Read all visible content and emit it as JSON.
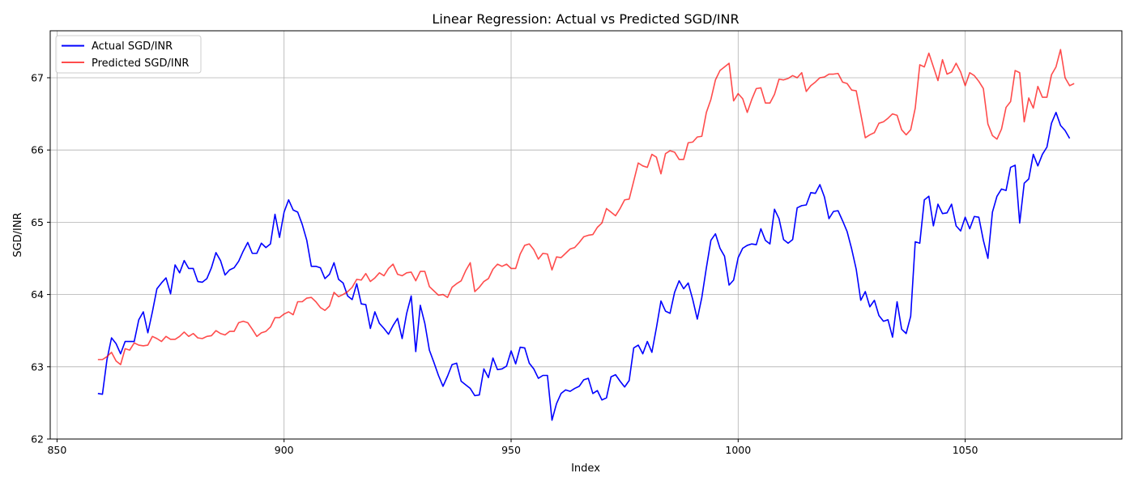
{
  "chart_data": {
    "type": "line",
    "title": "Linear Regression: Actual vs Predicted SGD/INR",
    "xlabel": "Index",
    "ylabel": "SGD/INR",
    "xlim": [
      848.5,
      1084.5
    ],
    "ylim": [
      62,
      67.65
    ],
    "xticks": [
      850,
      900,
      950,
      1000,
      1050
    ],
    "yticks": [
      62,
      63,
      64,
      65,
      66,
      67
    ],
    "grid": true,
    "legend_position": "top-left",
    "x_start": 859,
    "series": [
      {
        "name": "Actual SGD/INR",
        "color": "#0000ff",
        "values": [
          62.63,
          62.62,
          63.1,
          63.4,
          63.32,
          63.18,
          63.35,
          63.35,
          63.35,
          63.65,
          63.76,
          63.47,
          63.76,
          64.08,
          64.16,
          64.23,
          64.01,
          64.41,
          64.3,
          64.47,
          64.36,
          64.36,
          64.18,
          64.17,
          64.22,
          64.37,
          64.58,
          64.47,
          64.27,
          64.34,
          64.37,
          64.46,
          64.6,
          64.72,
          64.57,
          64.57,
          64.71,
          64.65,
          64.7,
          65.11,
          64.79,
          65.14,
          65.31,
          65.17,
          65.14,
          64.97,
          64.75,
          64.39,
          64.39,
          64.37,
          64.22,
          64.28,
          64.44,
          64.21,
          64.16,
          63.98,
          63.93,
          64.15,
          63.87,
          63.86,
          63.53,
          63.76,
          63.6,
          63.53,
          63.45,
          63.57,
          63.67,
          63.39,
          63.74,
          63.98,
          63.21,
          63.85,
          63.6,
          63.23,
          63.06,
          62.88,
          62.73,
          62.87,
          63.03,
          63.05,
          62.8,
          62.75,
          62.7,
          62.6,
          62.61,
          62.97,
          62.85,
          63.12,
          62.96,
          62.97,
          63.01,
          63.22,
          63.04,
          63.27,
          63.26,
          63.05,
          62.97,
          62.84,
          62.88,
          62.88,
          62.26,
          62.49,
          62.63,
          62.68,
          62.66,
          62.7,
          62.73,
          62.82,
          62.84,
          62.63,
          62.67,
          62.54,
          62.57,
          62.86,
          62.89,
          62.8,
          62.72,
          62.81,
          63.26,
          63.3,
          63.18,
          63.35,
          63.2,
          63.54,
          63.91,
          63.77,
          63.74,
          64.03,
          64.19,
          64.08,
          64.16,
          63.93,
          63.66,
          63.96,
          64.37,
          64.75,
          64.84,
          64.64,
          64.53,
          64.13,
          64.2,
          64.51,
          64.64,
          64.68,
          64.7,
          64.69,
          64.91,
          64.75,
          64.7,
          65.18,
          65.05,
          64.76,
          64.71,
          64.76,
          65.2,
          65.23,
          65.24,
          65.41,
          65.4,
          65.52,
          65.35,
          65.05,
          65.15,
          65.16,
          65.02,
          64.87,
          64.63,
          64.35,
          63.92,
          64.04,
          63.83,
          63.92,
          63.71,
          63.63,
          63.65,
          63.41,
          63.9,
          63.52,
          63.46,
          63.7,
          64.73,
          64.71,
          65.31,
          65.36,
          64.95,
          65.25,
          65.12,
          65.13,
          65.25,
          64.95,
          64.88,
          65.07,
          64.91,
          65.08,
          65.07,
          64.75,
          64.5,
          65.14,
          65.36,
          65.46,
          65.44,
          65.76,
          65.79,
          64.99,
          65.54,
          65.6,
          65.94,
          65.78,
          65.94,
          66.04,
          66.37,
          66.52,
          66.34,
          66.27,
          66.16
        ]
      },
      {
        "name": "Predicted SGD/INR",
        "color": "#ff0000",
        "values": [
          63.1,
          63.1,
          63.14,
          63.2,
          63.08,
          63.03,
          63.25,
          63.23,
          63.33,
          63.3,
          63.29,
          63.3,
          63.42,
          63.39,
          63.35,
          63.42,
          63.38,
          63.38,
          63.42,
          63.48,
          63.42,
          63.46,
          63.4,
          63.39,
          63.42,
          63.43,
          63.5,
          63.46,
          63.44,
          63.49,
          63.49,
          63.61,
          63.63,
          63.61,
          63.52,
          63.42,
          63.47,
          63.49,
          63.55,
          63.68,
          63.68,
          63.73,
          63.76,
          63.72,
          63.9,
          63.9,
          63.95,
          63.96,
          63.9,
          63.82,
          63.78,
          63.84,
          64.03,
          63.97,
          64.0,
          64.04,
          64.1,
          64.21,
          64.2,
          64.29,
          64.18,
          64.23,
          64.3,
          64.26,
          64.36,
          64.42,
          64.28,
          64.26,
          64.3,
          64.31,
          64.19,
          64.32,
          64.32,
          64.11,
          64.05,
          63.99,
          64.0,
          63.96,
          64.1,
          64.15,
          64.19,
          64.33,
          64.44,
          64.04,
          64.1,
          64.18,
          64.22,
          64.35,
          64.42,
          64.39,
          64.42,
          64.36,
          64.36,
          64.56,
          64.68,
          64.7,
          64.62,
          64.49,
          64.57,
          64.56,
          64.34,
          64.52,
          64.51,
          64.57,
          64.63,
          64.65,
          64.72,
          64.8,
          64.82,
          64.83,
          64.93,
          64.99,
          65.19,
          65.14,
          65.09,
          65.19,
          65.31,
          65.32,
          65.57,
          65.82,
          65.78,
          65.76,
          65.94,
          65.9,
          65.67,
          65.95,
          65.99,
          65.97,
          65.87,
          65.87,
          66.1,
          66.11,
          66.18,
          66.19,
          66.52,
          66.7,
          66.97,
          67.1,
          67.15,
          67.2,
          66.68,
          66.78,
          66.71,
          66.52,
          66.7,
          66.85,
          66.86,
          66.65,
          66.65,
          66.77,
          66.98,
          66.97,
          66.99,
          67.03,
          67.0,
          67.07,
          66.81,
          66.89,
          66.94,
          67.0,
          67.01,
          67.05,
          67.05,
          67.06,
          66.94,
          66.92,
          66.83,
          66.82,
          66.5,
          66.17,
          66.21,
          66.24,
          66.37,
          66.39,
          66.44,
          66.5,
          66.48,
          66.28,
          66.21,
          66.28,
          66.58,
          67.18,
          67.15,
          67.34,
          67.15,
          66.96,
          67.25,
          67.05,
          67.08,
          67.2,
          67.08,
          66.89,
          67.07,
          67.03,
          66.95,
          66.85,
          66.36,
          66.2,
          66.15,
          66.29,
          66.59,
          66.67,
          67.1,
          67.07,
          66.39,
          66.72,
          66.58,
          66.88,
          66.73,
          66.73,
          67.04,
          67.15,
          67.39,
          67.0,
          66.89,
          66.92
        ]
      }
    ]
  }
}
